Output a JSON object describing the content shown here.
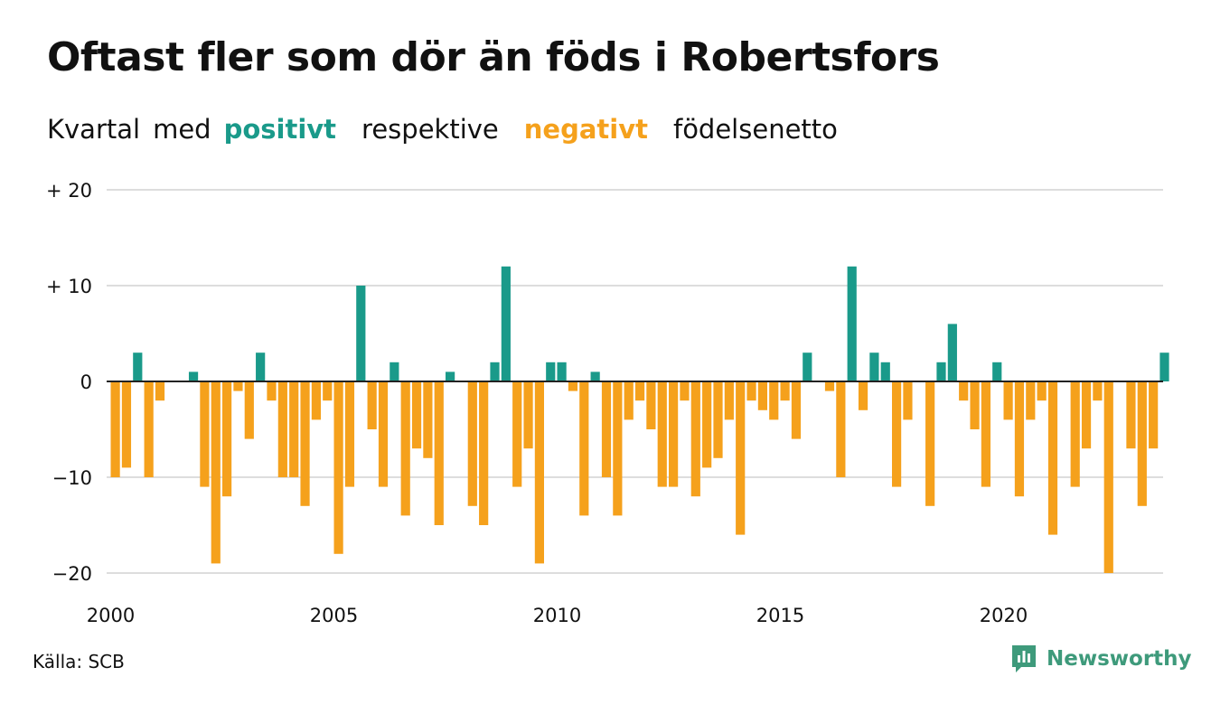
{
  "header": {
    "title": "Oftast fler som dör än föds i Robertsfors",
    "subtitle_prefix": "Kvartal",
    "subtitle_med": "med",
    "subtitle_positive": "positivt",
    "subtitle_middle": "respektive",
    "subtitle_negative": "negativt",
    "subtitle_suffix": "födelsenetto"
  },
  "footer": {
    "source": "Källa: SCB",
    "brand": "Newsworthy",
    "brand_icon": "newsworthy-logo-icon"
  },
  "colors": {
    "positive": "#1a9a8a",
    "negative": "#f5a11c",
    "grid": "#dddddd",
    "zero_line": "#222222",
    "brand": "#3e9a7b"
  },
  "chart_data": {
    "type": "bar",
    "title": "Oftast fler som dör än föds i Robertsfors",
    "subtitle": "Kvartal med positivt respektive negativt födelsenetto",
    "xlabel": "",
    "ylabel": "",
    "ylim": [
      -20,
      20
    ],
    "yticks": [
      {
        "value": 20,
        "label": "+ 20"
      },
      {
        "value": 10,
        "label": "+ 10"
      },
      {
        "value": 0,
        "label": "0"
      },
      {
        "value": -10,
        "label": "−10"
      },
      {
        "value": -20,
        "label": "−20"
      }
    ],
    "xticks": [
      "2000",
      "2005",
      "2010",
      "2015",
      "2020"
    ],
    "x_start_year": 2000,
    "x_end_year": 2023,
    "grid": true,
    "legend": "in subtitle",
    "categories": [
      "2000 Q1",
      "2000 Q2",
      "2000 Q3",
      "2000 Q4",
      "2001 Q1",
      "2001 Q2",
      "2001 Q3",
      "2001 Q4",
      "2002 Q1",
      "2002 Q2",
      "2002 Q3",
      "2002 Q4",
      "2003 Q1",
      "2003 Q2",
      "2003 Q3",
      "2003 Q4",
      "2004 Q1",
      "2004 Q2",
      "2004 Q3",
      "2004 Q4",
      "2005 Q1",
      "2005 Q2",
      "2005 Q3",
      "2005 Q4",
      "2006 Q1",
      "2006 Q2",
      "2006 Q3",
      "2006 Q4",
      "2007 Q1",
      "2007 Q2",
      "2007 Q3",
      "2007 Q4",
      "2008 Q1",
      "2008 Q2",
      "2008 Q3",
      "2008 Q4",
      "2009 Q1",
      "2009 Q2",
      "2009 Q3",
      "2009 Q4",
      "2010 Q1",
      "2010 Q2",
      "2010 Q3",
      "2010 Q4",
      "2011 Q1",
      "2011 Q2",
      "2011 Q3",
      "2011 Q4",
      "2012 Q1",
      "2012 Q2",
      "2012 Q3",
      "2012 Q4",
      "2013 Q1",
      "2013 Q2",
      "2013 Q3",
      "2013 Q4",
      "2014 Q1",
      "2014 Q2",
      "2014 Q3",
      "2014 Q4",
      "2015 Q1",
      "2015 Q2",
      "2015 Q3",
      "2015 Q4",
      "2016 Q1",
      "2016 Q2",
      "2016 Q3",
      "2016 Q4",
      "2017 Q1",
      "2017 Q2",
      "2017 Q3",
      "2017 Q4",
      "2018 Q1",
      "2018 Q2",
      "2018 Q3",
      "2018 Q4",
      "2019 Q1",
      "2019 Q2",
      "2019 Q3",
      "2019 Q4",
      "2020 Q1",
      "2020 Q2",
      "2020 Q3",
      "2020 Q4",
      "2021 Q1",
      "2021 Q2",
      "2021 Q3",
      "2021 Q4",
      "2022 Q1",
      "2022 Q2",
      "2022 Q3",
      "2022 Q4",
      "2023 Q1",
      "2023 Q2",
      "2023 Q3",
      "2023 Q4"
    ],
    "values": [
      -10,
      -9,
      3,
      -10,
      -2,
      0,
      0,
      1,
      -11,
      -19,
      -12,
      -1,
      -6,
      3,
      -2,
      -10,
      -10,
      -13,
      -4,
      -2,
      -18,
      -11,
      10,
      -5,
      -11,
      2,
      -14,
      -7,
      -8,
      -15,
      1,
      0,
      -13,
      -15,
      2,
      12,
      -11,
      -7,
      -19,
      2,
      2,
      -1,
      -14,
      1,
      -10,
      -14,
      -4,
      -2,
      -5,
      -11,
      -11,
      -2,
      -12,
      -9,
      -8,
      -4,
      -16,
      -2,
      -3,
      -4,
      -2,
      -6,
      3,
      0,
      -1,
      -10,
      12,
      -3,
      3,
      2,
      -11,
      -4,
      0,
      -13,
      2,
      6,
      -2,
      -5,
      -11,
      2,
      -4,
      -12,
      -4,
      -2,
      -16,
      0,
      -11,
      -7,
      -2,
      -20,
      0,
      -7,
      -13,
      -7,
      3,
      0
    ]
  }
}
